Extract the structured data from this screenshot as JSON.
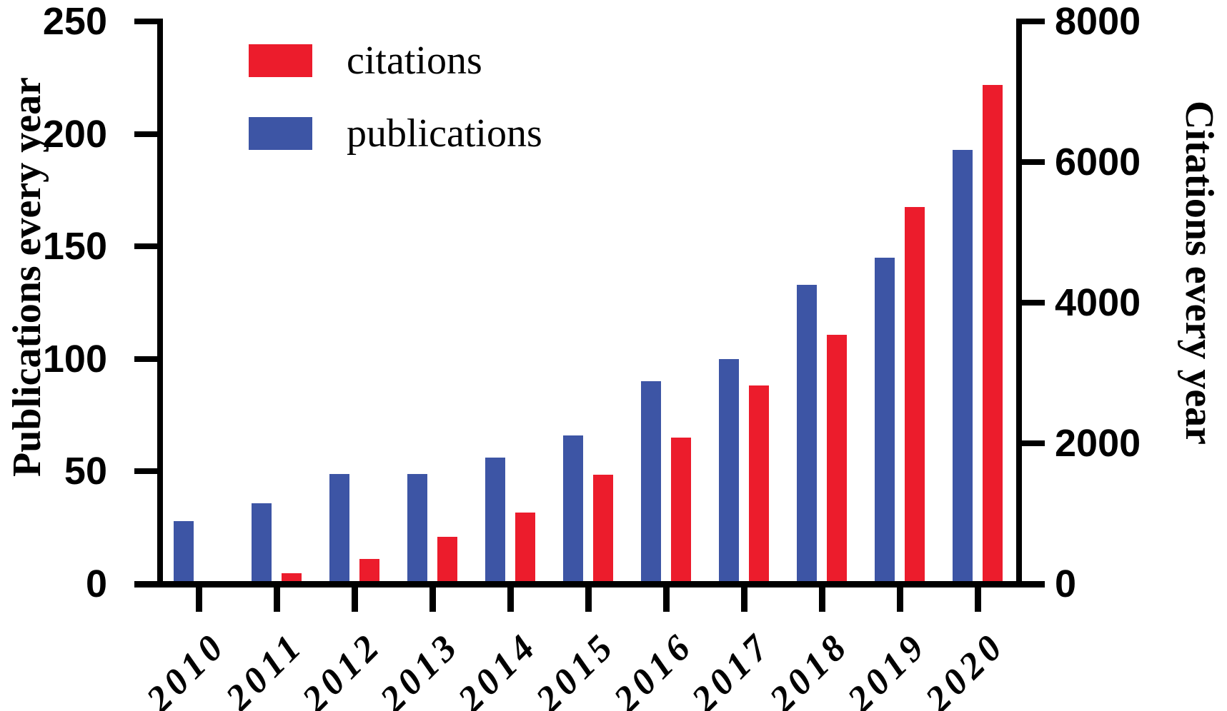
{
  "chart_data": {
    "type": "bar",
    "title": "",
    "categories": [
      "2010",
      "2011",
      "2012",
      "2013",
      "2014",
      "2015",
      "2016",
      "2017",
      "2018",
      "2019",
      "2020"
    ],
    "series": [
      {
        "name": "publications",
        "axis": "left",
        "color": "#3D55A5",
        "values": [
          28,
          36,
          49,
          49,
          56,
          66,
          90,
          100,
          133,
          145,
          193
        ]
      },
      {
        "name": "citations",
        "axis": "right",
        "color": "#EC1C2C",
        "values": [
          0,
          150,
          360,
          670,
          1020,
          1550,
          2080,
          2820,
          3540,
          5360,
          7100
        ]
      }
    ],
    "left_axis": {
      "label": "Publications every year",
      "range": [
        0,
        250
      ],
      "ticks": [
        0,
        50,
        100,
        150,
        200,
        250
      ]
    },
    "right_axis": {
      "label": "Citations every year",
      "range": [
        0,
        8000
      ],
      "ticks": [
        0,
        2000,
        4000,
        6000,
        8000
      ]
    },
    "legend": {
      "position": "top-left-inside",
      "items": [
        {
          "label": "citations",
          "color": "#EC1C2C"
        },
        {
          "label": "publications",
          "color": "#3D55A5"
        }
      ]
    },
    "grid": false
  }
}
